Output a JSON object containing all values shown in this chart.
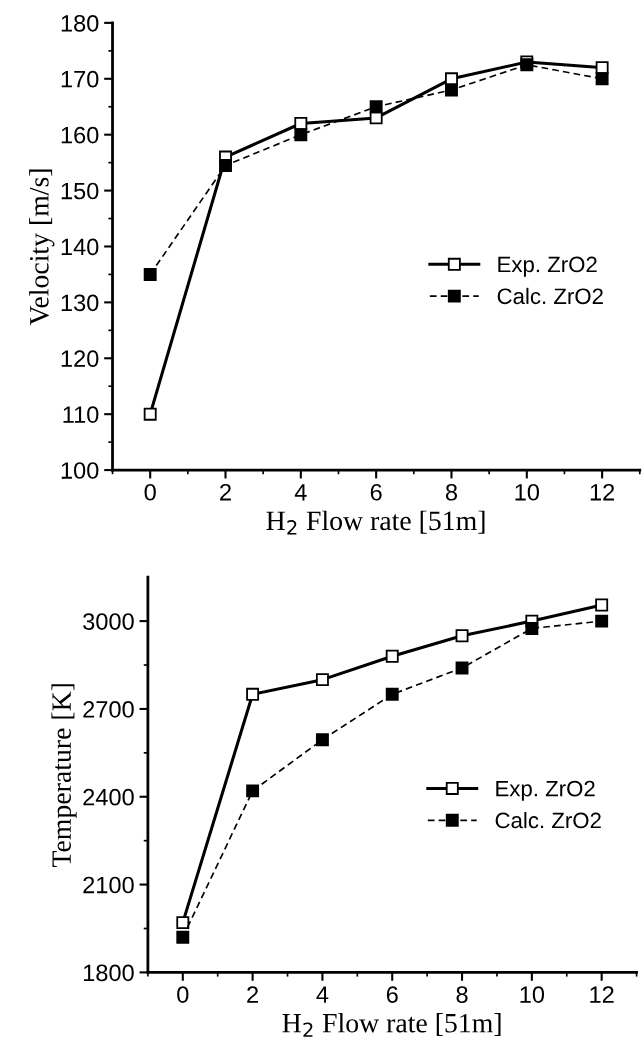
{
  "chart_data": [
    {
      "type": "line",
      "xlabel": "H$_{2}$ Flow rate [51m]",
      "ylabel": "Velocity [m/s]",
      "x": [
        0,
        2,
        4,
        6,
        8,
        10,
        12
      ],
      "series": [
        {
          "name": "Exp. ZrO2",
          "color": "#000000",
          "values": [
            110,
            156,
            162,
            163,
            170,
            173,
            172
          ],
          "marker": "square",
          "line_style": "solid"
        },
        {
          "name": "Calc. ZrO2",
          "color": "#000000",
          "values": [
            135,
            154.5,
            160,
            165,
            168,
            172.5,
            170
          ],
          "marker": "square",
          "line_style": "dashed"
        }
      ],
      "xlim": [
        -1,
        13
      ],
      "xticks": [
        0,
        2,
        4,
        6,
        8,
        10,
        12
      ],
      "ylim": [
        100,
        180
      ],
      "yticks": [
        100,
        110,
        120,
        130,
        140,
        150,
        160,
        170,
        180
      ],
      "grid": false,
      "legend": "right"
    },
    {
      "type": "line",
      "xlabel": "H$_{2}$ Flow rate [51m]",
      "ylabel": "Temperature [K]",
      "x": [
        0,
        2,
        4,
        6,
        8,
        10,
        12
      ],
      "series": [
        {
          "name": "Exp. ZrO2",
          "color": "#000000",
          "values": [
            1970,
            2750,
            2800,
            2880,
            2950,
            3000,
            3055
          ],
          "marker": "square",
          "line_style": "solid"
        },
        {
          "name": "Calc. ZrO2",
          "color": "#000000",
          "values": [
            1920,
            2420,
            2595,
            2750,
            2840,
            2975,
            3000
          ],
          "marker": "square",
          "line_style": "dashed"
        }
      ],
      "xlim": [
        -1,
        13
      ],
      "xticks": [
        0,
        2,
        4,
        6,
        8,
        10,
        12
      ],
      "ylim": [
        1800,
        3150
      ],
      "yticks": [
        1800,
        2100,
        2400,
        2700,
        3000
      ],
      "grid": false,
      "legend": "right"
    }
  ]
}
